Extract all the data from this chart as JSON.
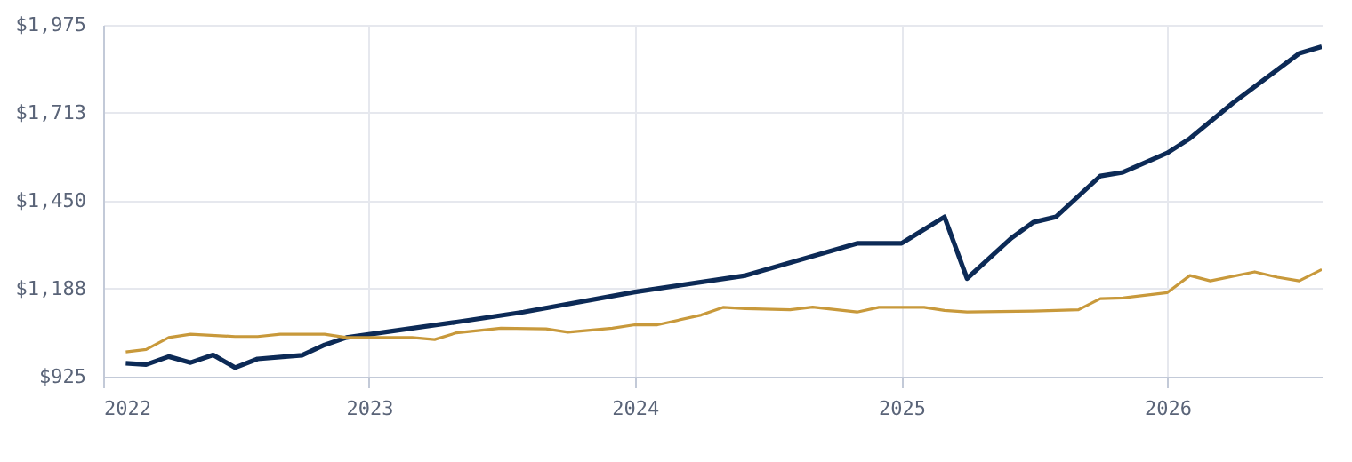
{
  "chart_data": {
    "type": "line",
    "xlim": [
      "2022-01",
      "2026-08"
    ],
    "xticks": [
      "2022",
      "2023",
      "2024",
      "2025",
      "2026"
    ],
    "ylim": [
      925,
      1975
    ],
    "yticks": [
      {
        "value": 925,
        "label": "$925"
      },
      {
        "value": 1188,
        "label": "$1,188"
      },
      {
        "value": 1450,
        "label": "$1,450"
      },
      {
        "value": 1713,
        "label": "$1,713"
      },
      {
        "value": 1975,
        "label": "$1,975"
      }
    ],
    "grid": true,
    "line_style": "solid",
    "series": [
      {
        "color": "#0c2a56",
        "x": [
          "2022-02",
          "2022-03",
          "2022-04",
          "2022-05",
          "2022-06",
          "2022-07",
          "2022-08",
          "2022-10",
          "2022-11",
          "2022-12",
          "2023-05",
          "2023-08",
          "2024-01",
          "2024-06",
          "2024-11",
          "2025-01",
          "2025-03",
          "2025-04",
          "2025-06",
          "2025-07",
          "2025-08",
          "2025-10",
          "2025-11",
          "2026-01",
          "2026-02",
          "2026-04",
          "2026-07",
          "2026-08"
        ],
        "values": [
          965,
          961,
          985,
          967,
          990,
          952,
          978,
          989,
          1020,
          1042,
          1088,
          1118,
          1178,
          1227,
          1323,
          1323,
          1402,
          1218,
          1339,
          1386,
          1402,
          1524,
          1535,
          1593,
          1636,
          1742,
          1890,
          1910
        ]
      },
      {
        "color": "#c8993b",
        "x": [
          "2022-02",
          "2022-03",
          "2022-04",
          "2022-05",
          "2022-07",
          "2022-08",
          "2022-09",
          "2022-11",
          "2022-12",
          "2023-01",
          "2023-03",
          "2023-04",
          "2023-05",
          "2023-07",
          "2023-09",
          "2023-10",
          "2023-12",
          "2024-01",
          "2024-02",
          "2024-04",
          "2024-05",
          "2024-06",
          "2024-08",
          "2024-09",
          "2024-11",
          "2024-12",
          "2025-02",
          "2025-03",
          "2025-04",
          "2025-07",
          "2025-09",
          "2025-10",
          "2025-11",
          "2026-01",
          "2026-02",
          "2026-03",
          "2026-05",
          "2026-06",
          "2026-07",
          "2026-08"
        ],
        "values": [
          999,
          1006,
          1042,
          1052,
          1045,
          1045,
          1052,
          1052,
          1042,
          1042,
          1042,
          1036,
          1056,
          1070,
          1068,
          1058,
          1070,
          1080,
          1080,
          1109,
          1132,
          1128,
          1125,
          1133,
          1118,
          1132,
          1132,
          1123,
          1118,
          1121,
          1125,
          1158,
          1160,
          1176,
          1227,
          1211,
          1238,
          1222,
          1211,
          1245
        ]
      }
    ]
  }
}
